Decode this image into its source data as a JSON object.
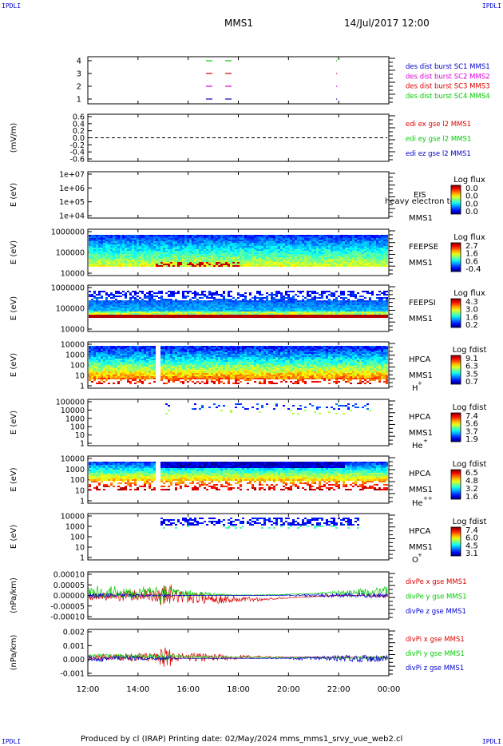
{
  "header": {
    "corner_tl": "IPDLI",
    "corner_tr": "IPDLI",
    "corner_bl": "IPDLI",
    "corner_br": "IPDLI",
    "spacecraft": "MMS1",
    "datetime": "14/Jul/2017 12:00"
  },
  "footer": {
    "text": "Produced by cl (IRAP)   Printing date: 02/May/2024   mms_mms1_srvy_vue_web2.cl"
  },
  "colors": {
    "blue": "#0000cc",
    "magenta": "#dd00dd",
    "red": "#dd0000",
    "green": "#00cc00"
  },
  "chart_data": [
    {
      "type": "scatter",
      "name_key": "burst",
      "ytick_labels": [
        "1",
        "2",
        "3",
        "4"
      ],
      "ylim": [
        0.5,
        4.5
      ],
      "legend": [
        {
          "label": "des dist burst SC1 MMS1",
          "color": "#0000cc"
        },
        {
          "label": "des dist burst SC2 MMS2",
          "color": "#dd00dd"
        },
        {
          "label": "des dist burst SC3 MMS3",
          "color": "#dd0000"
        },
        {
          "label": "des dist burst SC4 MMS4",
          "color": "#00cc00"
        }
      ]
    },
    {
      "type": "line",
      "ylabel": "(mV/m)",
      "ytick_labels": [
        "0.6",
        "0.4",
        "0.2",
        "0.0",
        "-0.2",
        "-0.4",
        "-0.6"
      ],
      "ylim": [
        -0.7,
        0.7
      ],
      "legend": [
        {
          "label": "edi ex gse l2 MMS1",
          "color": "#dd0000"
        },
        {
          "label": "edi ey gse l2 MMS1",
          "color": "#00cc00"
        },
        {
          "label": "edi ez gse l2 MMS1",
          "color": "#0000cc"
        }
      ]
    },
    {
      "type": "heatmap",
      "ylabel": "E (eV)",
      "ytick_labels": [
        "1e+07",
        "1e+06",
        "1e+05",
        "1e+04"
      ],
      "instrument": "EIS",
      "overlay": "heavy electron to",
      "sc": "MMS1",
      "cbar_title": "Log flux",
      "cbar_values": [
        "0.0",
        "0.0",
        "0.0",
        "0.0"
      ]
    },
    {
      "type": "heatmap",
      "ylabel": "E (eV)",
      "ytick_labels": [
        "1000000",
        "100000",
        "10000"
      ],
      "instrument": "FEEPSE",
      "sc": "MMS1",
      "cbar_title": "Log flux",
      "cbar_values": [
        "2.7",
        "1.6",
        "0.6",
        "-0.4"
      ]
    },
    {
      "type": "heatmap",
      "ylabel": "E (eV)",
      "ytick_labels": [
        "1000000",
        "100000",
        "10000"
      ],
      "instrument": "FEEPSI",
      "sc": "MMS1",
      "cbar_title": "Log flux",
      "cbar_values": [
        "4.3",
        "3.0",
        "1.6",
        "0.2"
      ]
    },
    {
      "type": "heatmap",
      "ylabel": "E (eV)",
      "ytick_labels": [
        "10000",
        "1000",
        "100",
        "10",
        "1"
      ],
      "instrument": "HPCA",
      "sc": "MMS1",
      "species": "H",
      "species_charge": "+",
      "cbar_title": "Log fdist",
      "cbar_values": [
        "9.1",
        "6.3",
        "3.5",
        "0.7"
      ]
    },
    {
      "type": "heatmap",
      "ylabel": "E (eV)",
      "ytick_labels": [
        "100000",
        "10000",
        "1000",
        "100",
        "10",
        "1"
      ],
      "instrument": "HPCA",
      "sc": "MMS1",
      "species": "He",
      "species_charge": "+",
      "cbar_title": "Log fdist",
      "cbar_values": [
        "7.4",
        "5.6",
        "3.7",
        "1.9"
      ]
    },
    {
      "type": "heatmap",
      "ylabel": "E (eV)",
      "ytick_labels": [
        "10000",
        "1000",
        "100",
        "10",
        "1"
      ],
      "instrument": "HPCA",
      "sc": "MMS1",
      "species": "He",
      "species_charge": "++",
      "cbar_title": "Log fdist",
      "cbar_values": [
        "6.5",
        "4.8",
        "3.2",
        "1.6"
      ]
    },
    {
      "type": "heatmap",
      "ylabel": "E (eV)",
      "ytick_labels": [
        "10000",
        "1000",
        "100",
        "10",
        "1"
      ],
      "instrument": "HPCA",
      "sc": "MMS1",
      "species": "O",
      "species_charge": "+",
      "cbar_title": "Log fdist",
      "cbar_values": [
        "7.4",
        "6.0",
        "4.5",
        "3.1"
      ]
    },
    {
      "type": "line",
      "ylabel": "(nPa/km)",
      "ytick_labels": [
        "0.00010",
        "0.00005",
        "0.00000",
        "-0.00005",
        "-0.00010"
      ],
      "ylim": [
        -0.00012,
        0.00012
      ],
      "legend": [
        {
          "label": "divPe x gse MMS1",
          "color": "#dd0000"
        },
        {
          "label": "divPe y gse MMS1",
          "color": "#00cc00"
        },
        {
          "label": "divPe z gse MMS1",
          "color": "#0000cc"
        }
      ]
    },
    {
      "type": "line",
      "ylabel": "(nPa/km)",
      "ytick_labels": [
        "0.002",
        "0.001",
        "0.000",
        "-0.001"
      ],
      "ylim": [
        -0.0015,
        0.0025
      ],
      "legend": [
        {
          "label": "divPi x gse MMS1",
          "color": "#dd0000"
        },
        {
          "label": "divPi y gse MMS1",
          "color": "#00cc00"
        },
        {
          "label": "divPi z gse MMS1",
          "color": "#0000cc"
        }
      ]
    }
  ],
  "xaxis": {
    "tick_labels": [
      "12:00",
      "14:00",
      "16:00",
      "18:00",
      "20:00",
      "22:00",
      "00:00"
    ]
  }
}
